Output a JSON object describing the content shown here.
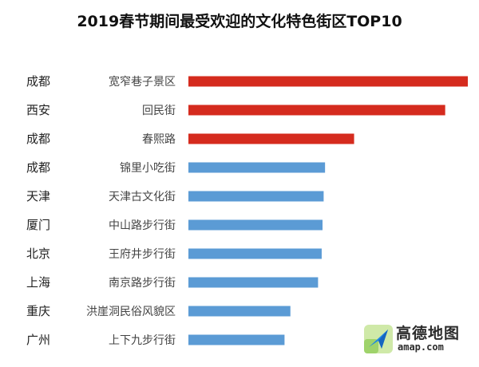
{
  "chart_data": {
    "type": "bar",
    "orientation": "horizontal",
    "title": "2019春节期间最受欢迎的文化特色街区TOP10",
    "categories": [
      {
        "city": "成都",
        "street": "宽窄巷子景区"
      },
      {
        "city": "西安",
        "street": "回民街"
      },
      {
        "city": "成都",
        "street": "春熙路"
      },
      {
        "city": "成都",
        "street": "锦里小吃街"
      },
      {
        "city": "天津",
        "street": "天津古文化街"
      },
      {
        "city": "厦门",
        "street": "中山路步行街"
      },
      {
        "city": "北京",
        "street": "王府井步行街"
      },
      {
        "city": "上海",
        "street": "南京路步行街"
      },
      {
        "city": "重庆",
        "street": "洪崖洞民俗风貌区"
      },
      {
        "city": "广州",
        "street": "上下九步行街"
      }
    ],
    "values": [
      100,
      91.9,
      59.3,
      48.9,
      48.4,
      48.0,
      47.7,
      46.4,
      36.5,
      34.4
    ],
    "colors": [
      "#d52b1e",
      "#d52b1e",
      "#d52b1e",
      "#5b9bd5",
      "#5b9bd5",
      "#5b9bd5",
      "#5b9bd5",
      "#5b9bd5",
      "#5b9bd5",
      "#5b9bd5"
    ],
    "xlim": [
      0,
      100
    ],
    "grid": false,
    "legend": "none"
  },
  "logo": {
    "name": "高德地图",
    "url": "amap.com"
  }
}
